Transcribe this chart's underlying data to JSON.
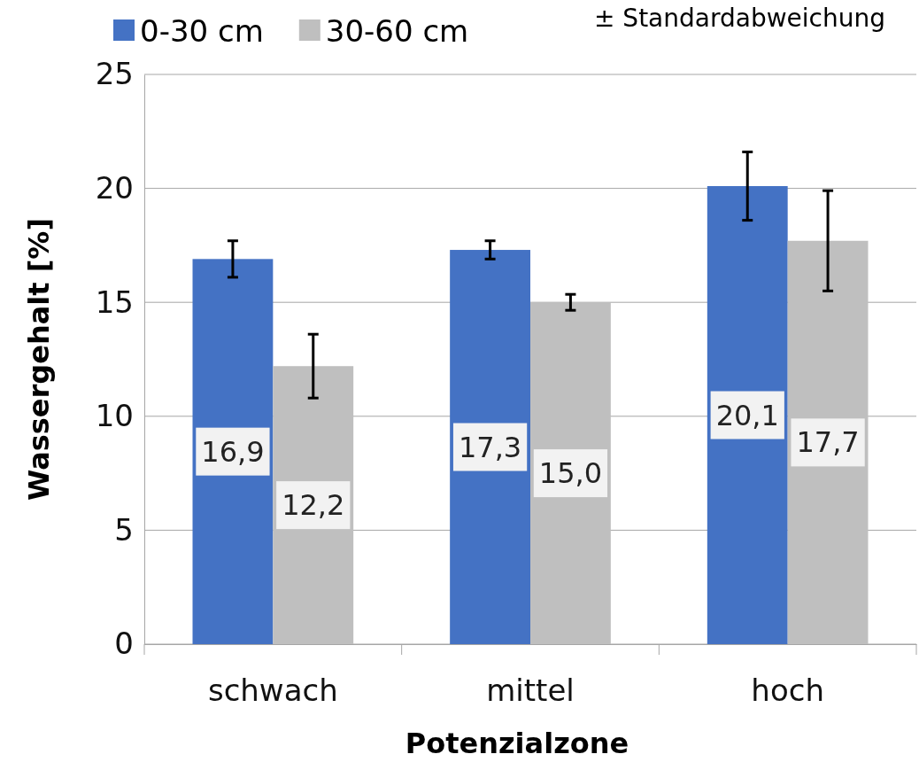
{
  "chart_data": {
    "type": "bar",
    "xlabel": "Potenzialzone",
    "ylabel": "Wassergehalt [%]",
    "categories": [
      "schwach",
      "mittel",
      "hoch"
    ],
    "series": [
      {
        "name": "0-30 cm",
        "color": "#4472c4",
        "values": [
          16.9,
          17.3,
          20.1
        ],
        "errors": [
          0.8,
          0.4,
          1.5
        ],
        "value_labels": [
          "16,9",
          "17,3",
          "20,1"
        ]
      },
      {
        "name": "30-60 cm",
        "color": "#bfbfbf",
        "values": [
          12.2,
          15.0,
          17.7
        ],
        "errors": [
          1.4,
          0.35,
          2.2
        ],
        "value_labels": [
          "12,2",
          "15,0",
          "17,7"
        ]
      }
    ],
    "ylim": [
      0,
      25
    ],
    "yticks": [
      0,
      5,
      10,
      15,
      20,
      25
    ],
    "grid": "y",
    "legend": "top",
    "annotations": [
      "± Standardabweichung"
    ]
  }
}
